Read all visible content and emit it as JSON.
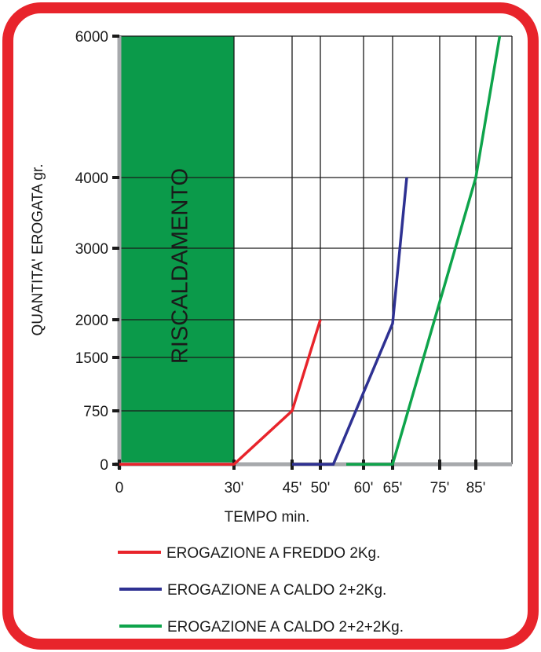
{
  "chart_data": {
    "type": "line",
    "title": "",
    "xlabel": "TEMPO min.",
    "ylabel": "QUANTITA' EROGATA gr.",
    "x_ticks": [
      {
        "value": 0,
        "label": "0"
      },
      {
        "value": 30,
        "label": "30'"
      },
      {
        "value": 45,
        "label": "45'"
      },
      {
        "value": 50,
        "label": "50'"
      },
      {
        "value": 60,
        "label": "60'"
      },
      {
        "value": 65,
        "label": "65'"
      },
      {
        "value": 75,
        "label": "75'"
      },
      {
        "value": 85,
        "label": "85'"
      }
    ],
    "y_ticks": [
      0,
      750,
      1500,
      2000,
      3000,
      4000,
      6000
    ],
    "y_tick_labels": [
      "0",
      "750",
      "1500",
      "2000",
      "3000",
      "4000",
      "6000"
    ],
    "grid": true,
    "legend_position": "bottom",
    "highlight_region": {
      "x_from": 0,
      "x_to": 30,
      "label": "RISCALDAMENTO",
      "color": "#0b9a4a"
    },
    "series": [
      {
        "name": "EROGAZIONE A FREDDO 2Kg.",
        "color": "#e8242b",
        "points": [
          [
            0,
            0
          ],
          [
            30,
            0
          ],
          [
            45,
            750
          ],
          [
            50,
            2000
          ]
        ]
      },
      {
        "name": "EROGAZIONE A CALDO 2+2Kg.",
        "color": "#2e3192",
        "points": [
          [
            45,
            0
          ],
          [
            53,
            0
          ],
          [
            65,
            1950
          ],
          [
            68,
            4000
          ]
        ]
      },
      {
        "name": "EROGAZIONE A CALDO 2+2+2Kg.",
        "color": "#0ea44b",
        "points": [
          [
            56,
            0
          ],
          [
            65,
            0
          ],
          [
            85,
            4000
          ],
          [
            89,
            6000
          ]
        ]
      }
    ]
  },
  "theme": {
    "frame_color": "#e8242b",
    "axis_color": "#a7a9ac",
    "grid_color": "#1a1a1a"
  }
}
